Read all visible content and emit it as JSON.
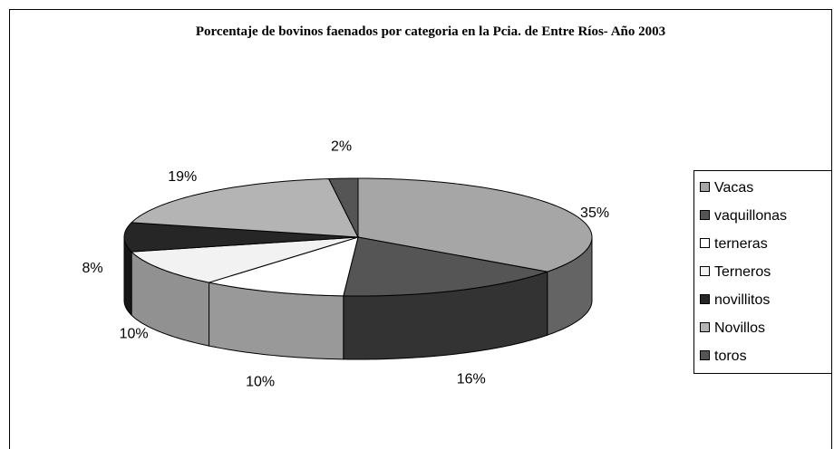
{
  "chart_data": {
    "type": "pie3d",
    "title": "Porcentaje de bovinos faenados por categoria en la Pcia. de Entre Ríos- Año 2003",
    "categories": [
      "Vacas",
      "vaquillonas",
      "terneras",
      "Terneros",
      "novillitos",
      "Novillos",
      "toros"
    ],
    "values": [
      35,
      16,
      10,
      10,
      8,
      19,
      2
    ],
    "value_labels": [
      "35%",
      "16%",
      "10%",
      "10%",
      "8%",
      "19%",
      "2%"
    ],
    "colors": [
      "#a6a6a6",
      "#555555",
      "#ffffff",
      "#f2f2f2",
      "#262626",
      "#b4b4b4",
      "#555555"
    ],
    "legend": "right"
  }
}
